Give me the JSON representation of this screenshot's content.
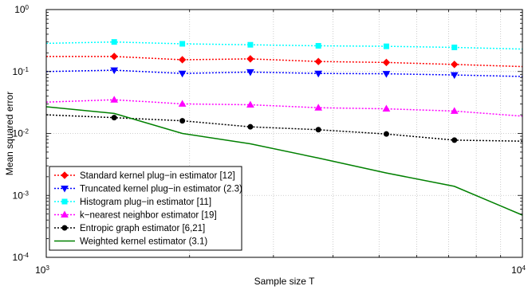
{
  "chart_data": {
    "type": "line",
    "xlabel": "Sample size T",
    "ylabel": "Mean squared error",
    "xscale": "log",
    "yscale": "log",
    "xlim": [
      1000,
      10000
    ],
    "ylim": [
      0.0001,
      1
    ],
    "x_ticks": [
      {
        "value": 1000,
        "base": "10",
        "exp": "3"
      },
      {
        "value": 10000,
        "base": "10",
        "exp": "4"
      }
    ],
    "y_ticks": [
      {
        "value": 0.0001,
        "base": "10",
        "exp": "-4"
      },
      {
        "value": 0.001,
        "base": "10",
        "exp": "-3"
      },
      {
        "value": 0.01,
        "base": "10",
        "exp": "-2"
      },
      {
        "value": 0.1,
        "base": "10",
        "exp": "-1"
      },
      {
        "value": 1,
        "base": "10",
        "exp": "0"
      }
    ],
    "grid": true,
    "legend_position": "bottom-left",
    "x": [
      1000,
      1389,
      1931,
      2683,
      3728,
      5179,
      7197,
      10000
    ],
    "series": [
      {
        "name": "Standard kernel plug−in estimator [12]",
        "color": "#ff0000",
        "marker": "diamond",
        "line": "dotted",
        "values": [
          0.175,
          0.175,
          0.155,
          0.16,
          0.145,
          0.14,
          0.13,
          0.12
        ]
      },
      {
        "name": "Truncated kernel plug−in estimator (2.3)",
        "color": "#0000ff",
        "marker": "triangle-down",
        "line": "dotted",
        "values": [
          0.1,
          0.105,
          0.093,
          0.098,
          0.093,
          0.092,
          0.088,
          0.083
        ]
      },
      {
        "name": "Histogram plug−in estimator [11]",
        "color": "#00ffff",
        "marker": "square",
        "line": "dotted",
        "values": [
          0.285,
          0.3,
          0.28,
          0.27,
          0.26,
          0.255,
          0.245,
          0.23
        ]
      },
      {
        "name": "k−nearest neighbor estimator [19]",
        "color": "#ff00ff",
        "marker": "triangle-up",
        "line": "dotted",
        "values": [
          0.032,
          0.035,
          0.03,
          0.029,
          0.026,
          0.025,
          0.023,
          0.019
        ]
      },
      {
        "name": "Entropic graph estimator [6,21]",
        "color": "#000000",
        "marker": "circle",
        "line": "dotted",
        "values": [
          0.02,
          0.018,
          0.016,
          0.0128,
          0.0115,
          0.0098,
          0.0078,
          0.0075
        ]
      },
      {
        "name": "Weighted kernel estimator (3.1)",
        "color": "#008000",
        "marker": "none",
        "line": "solid",
        "values": [
          0.027,
          0.021,
          0.01,
          0.0068,
          0.004,
          0.0023,
          0.0014,
          0.00048
        ]
      }
    ]
  }
}
